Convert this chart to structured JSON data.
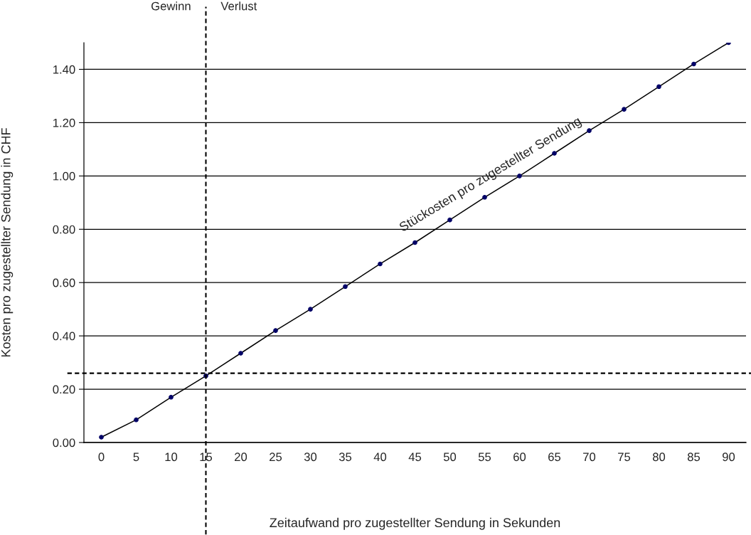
{
  "chart_data": {
    "type": "line",
    "xlabel": "Zeitaufwand pro zugestellter Sendung in Sekunden",
    "ylabel": "Kosten pro zugestellter Sendung in CHF",
    "categories": [
      "0",
      "5",
      "10",
      "15",
      "20",
      "25",
      "30",
      "35",
      "40",
      "45",
      "50",
      "55",
      "60",
      "65",
      "70",
      "75",
      "80",
      "85",
      "90"
    ],
    "series": [
      {
        "name": "Stückosten pro zugestellter Sendung",
        "color": "#000000",
        "values": [
          0.02,
          0.085,
          0.17,
          0.25,
          0.335,
          0.42,
          0.5,
          0.585,
          0.67,
          0.75,
          0.835,
          0.92,
          1.0,
          1.085,
          1.17,
          1.25,
          1.335,
          1.42,
          1.5
        ]
      }
    ],
    "ylim": [
      0,
      1.5
    ],
    "yticks": [
      {
        "value": 0,
        "label": "0.00"
      },
      {
        "value": 0.2,
        "label": "0.20"
      },
      {
        "value": 0.4,
        "label": "0.40"
      },
      {
        "value": 0.6,
        "label": "0.60"
      },
      {
        "value": 0.8,
        "label": "0.80"
      },
      {
        "value": 1.0,
        "label": "1.00"
      },
      {
        "value": 1.2,
        "label": "1.20"
      },
      {
        "value": 1.4,
        "label": "1.40"
      }
    ],
    "grid": "y",
    "marker": "circle",
    "line_style": "solid",
    "ref_lines": [
      {
        "axis": "x",
        "value": "15",
        "line_style": "dashed"
      },
      {
        "axis": "y",
        "value": 0.26,
        "line_style": "dashed"
      }
    ],
    "annotations": [
      "Gewinn",
      "Verlust"
    ]
  }
}
